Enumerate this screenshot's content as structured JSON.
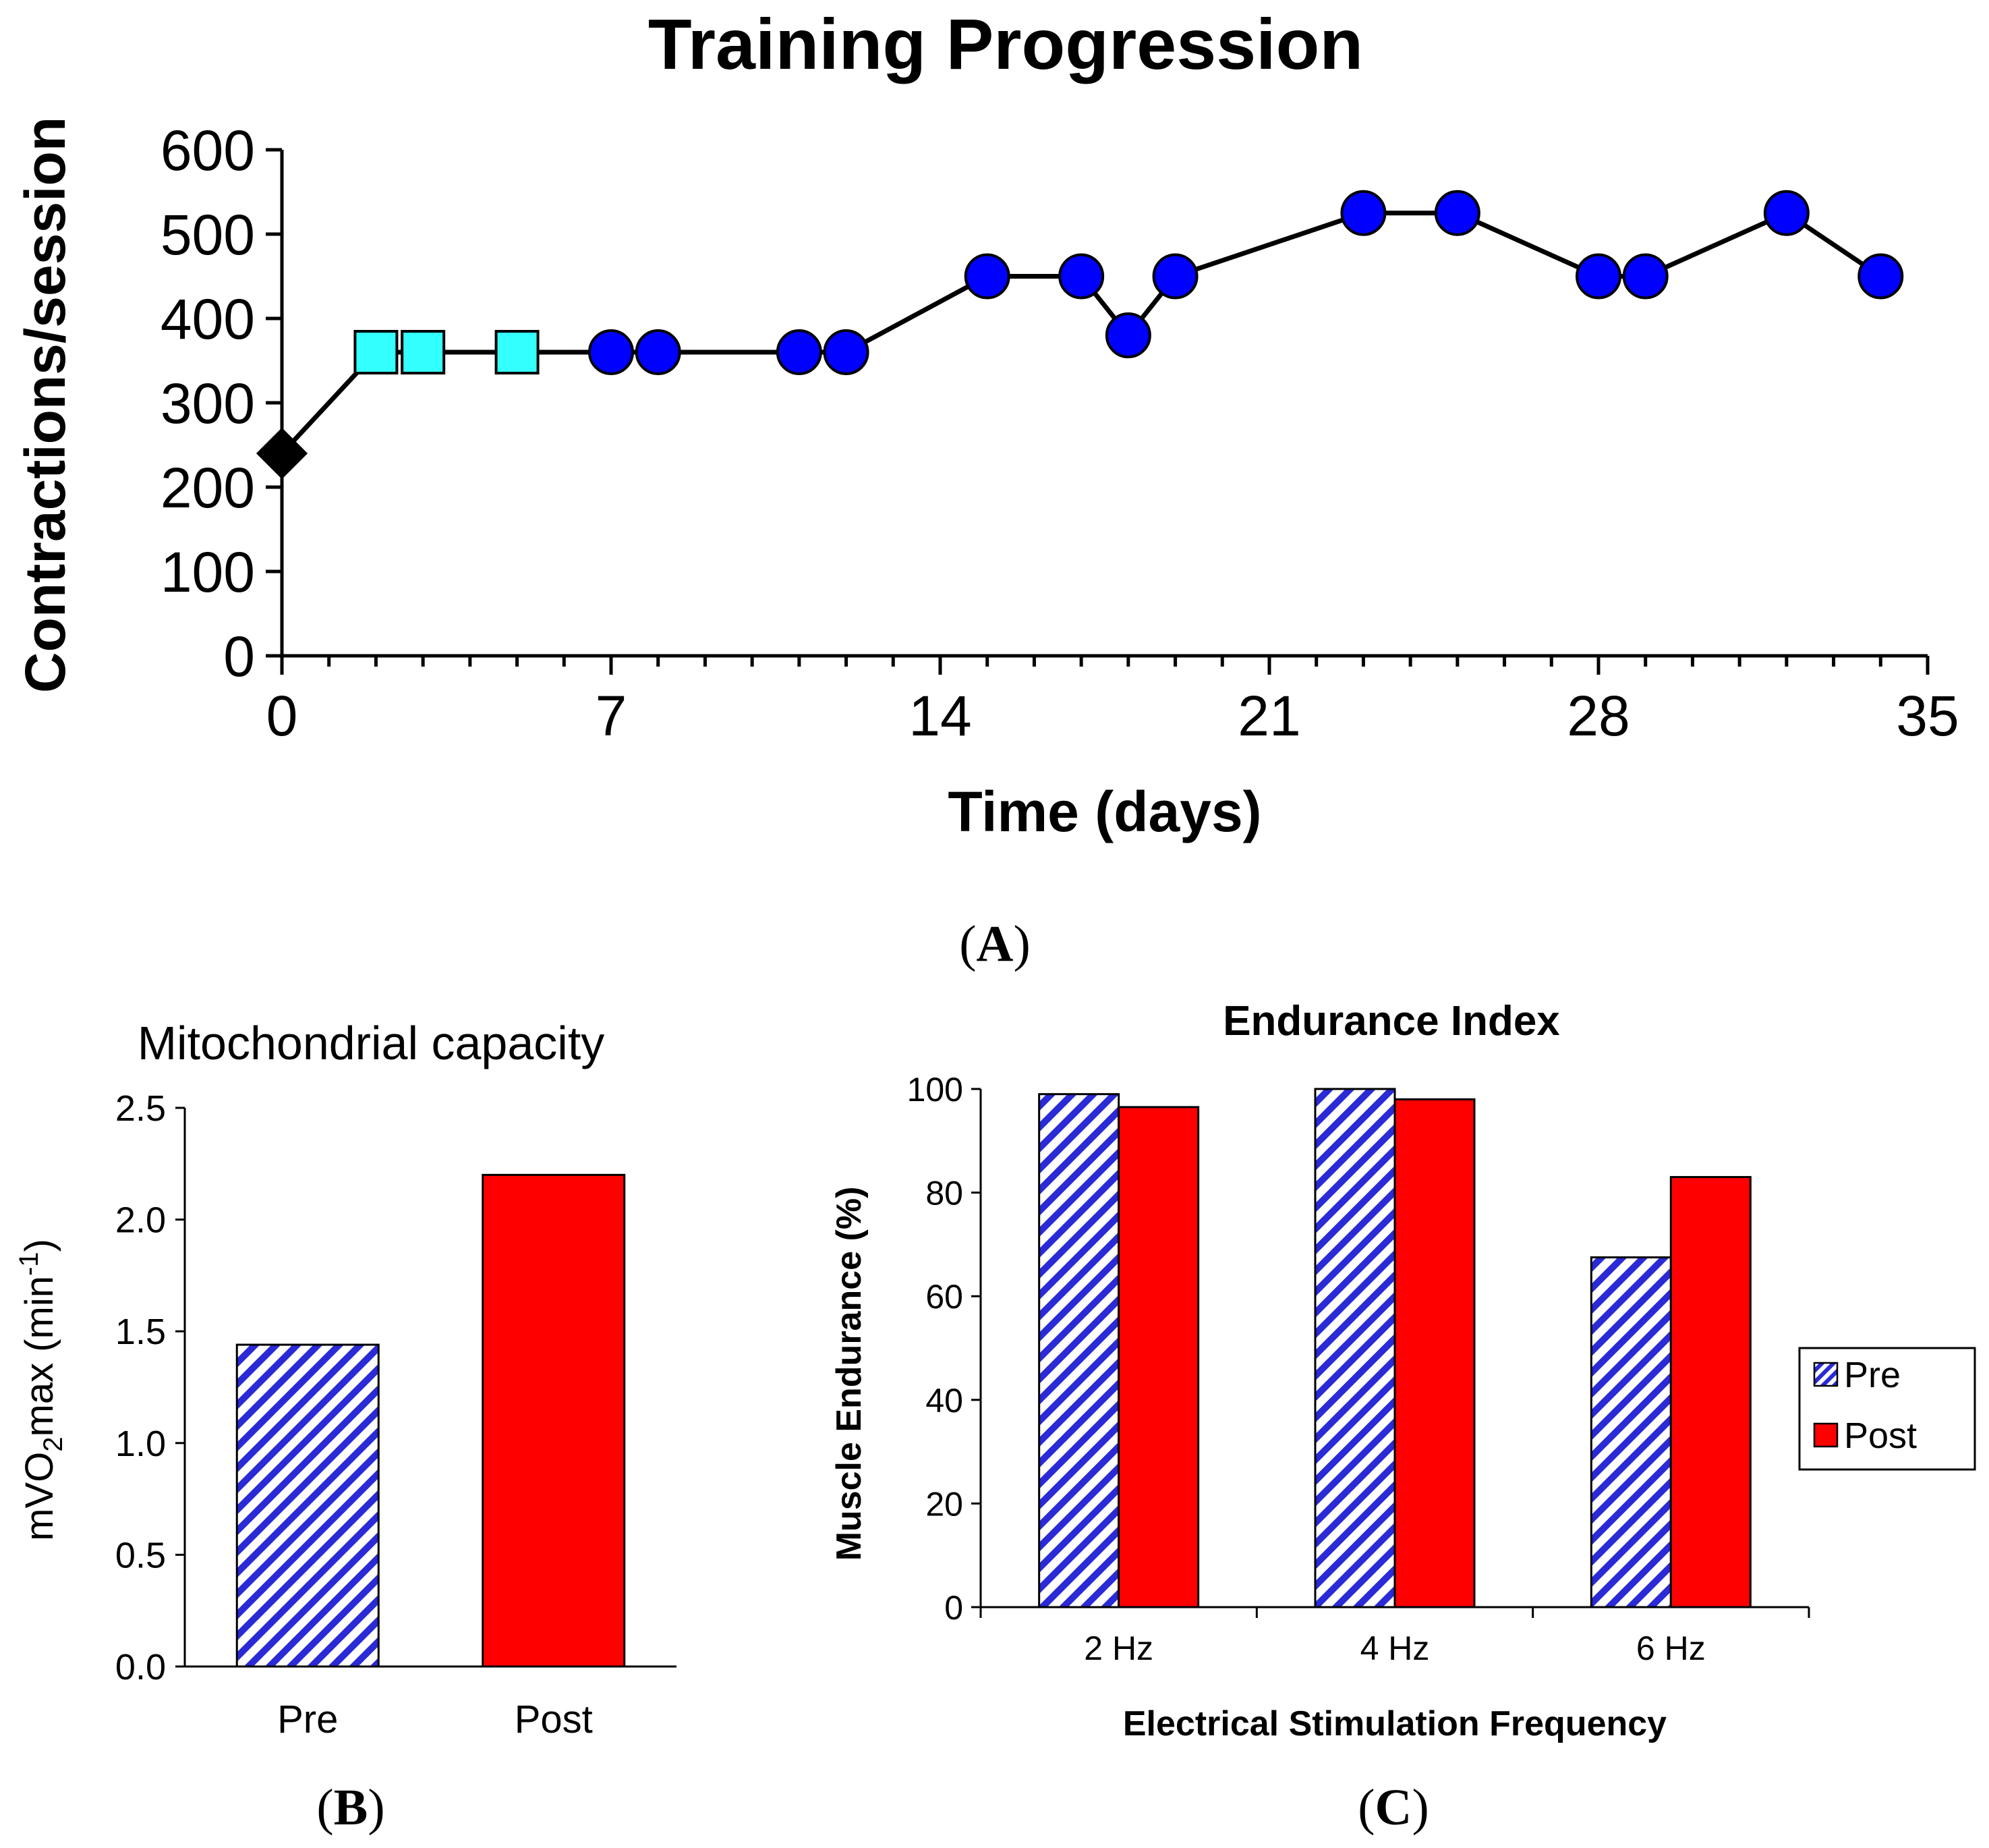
{
  "colors": {
    "line": "#000000",
    "diamond": "#000000",
    "square": "#33ffff",
    "circle": "#0000ff",
    "pre_stripe": "#2a2ad6",
    "post": "#ff0000"
  },
  "chart_data": [
    {
      "panel": "A",
      "panel_label": "A",
      "type": "line",
      "title": "Training Progression",
      "xlabel": "Time (days)",
      "ylabel": "Contractions/session",
      "xlim": [
        0,
        35
      ],
      "ylim": [
        0,
        600
      ],
      "xticks": [
        "0",
        "7",
        "14",
        "21",
        "28",
        "35"
      ],
      "yticks": [
        "0",
        "100",
        "200",
        "300",
        "400",
        "500",
        "600"
      ],
      "series": [
        {
          "name": "Contractions",
          "points": [
            {
              "x": 0,
              "y": 240,
              "marker": "diamond"
            },
            {
              "x": 2,
              "y": 360,
              "marker": "square"
            },
            {
              "x": 3,
              "y": 360,
              "marker": "square"
            },
            {
              "x": 5,
              "y": 360,
              "marker": "square"
            },
            {
              "x": 7,
              "y": 360,
              "marker": "circle"
            },
            {
              "x": 8,
              "y": 360,
              "marker": "circle"
            },
            {
              "x": 11,
              "y": 360,
              "marker": "circle"
            },
            {
              "x": 12,
              "y": 360,
              "marker": "circle"
            },
            {
              "x": 15,
              "y": 450,
              "marker": "circle"
            },
            {
              "x": 17,
              "y": 450,
              "marker": "circle"
            },
            {
              "x": 18,
              "y": 380,
              "marker": "circle"
            },
            {
              "x": 19,
              "y": 450,
              "marker": "circle"
            },
            {
              "x": 23,
              "y": 525,
              "marker": "circle"
            },
            {
              "x": 25,
              "y": 525,
              "marker": "circle"
            },
            {
              "x": 28,
              "y": 450,
              "marker": "circle"
            },
            {
              "x": 29,
              "y": 450,
              "marker": "circle"
            },
            {
              "x": 32,
              "y": 525,
              "marker": "circle"
            },
            {
              "x": 34,
              "y": 450,
              "marker": "circle"
            }
          ]
        }
      ]
    },
    {
      "panel": "B",
      "panel_label": "B",
      "type": "bar",
      "title": "Mitochondrial capacity",
      "ylabel_parts": [
        "mVO",
        "2",
        "max (min",
        "-1",
        ")"
      ],
      "categories": [
        "Pre",
        "Post"
      ],
      "values": [
        1.44,
        2.2
      ],
      "ylim": [
        0,
        2.5
      ],
      "yticks": [
        "0.0",
        "0.5",
        "1.0",
        "1.5",
        "2.0",
        "2.5"
      ]
    },
    {
      "panel": "C",
      "panel_label": "C",
      "type": "bar",
      "title": "Endurance Index",
      "xlabel": "Electrical Stimulation Frequency",
      "ylabel": "Muscle Endurance (%)",
      "categories": [
        "2 Hz",
        "4 Hz",
        "6 Hz"
      ],
      "ylim": [
        0,
        100
      ],
      "yticks": [
        "0",
        "20",
        "40",
        "60",
        "80",
        "100"
      ],
      "series": [
        {
          "name": "Pre",
          "values": [
            99,
            100,
            67.5
          ]
        },
        {
          "name": "Post",
          "values": [
            96.5,
            98,
            83
          ]
        }
      ],
      "legend": [
        "Pre",
        "Post"
      ]
    }
  ]
}
